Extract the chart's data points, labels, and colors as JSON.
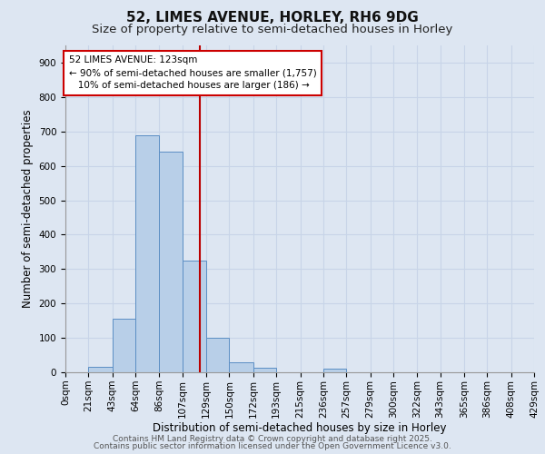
{
  "title": "52, LIMES AVENUE, HORLEY, RH6 9DG",
  "subtitle": "Size of property relative to semi-detached houses in Horley",
  "xlabel": "Distribution of semi-detached houses by size in Horley",
  "ylabel": "Number of semi-detached properties",
  "bin_edges": [
    0,
    21,
    43,
    64,
    86,
    107,
    129,
    150,
    172,
    193,
    215,
    236,
    257,
    279,
    300,
    322,
    343,
    365,
    386,
    408,
    429
  ],
  "bar_heights": [
    0,
    15,
    155,
    690,
    640,
    325,
    100,
    30,
    12,
    0,
    0,
    10,
    0,
    0,
    0,
    0,
    0,
    0,
    0,
    0
  ],
  "bar_color": "#b8cfe8",
  "bar_edge_color": "#5b8ec4",
  "grid_color": "#c8d4e8",
  "background_color": "#dde6f2",
  "vline_x": 123,
  "vline_color": "#bb0000",
  "annotation_text": "52 LIMES AVENUE: 123sqm\n← 90% of semi-detached houses are smaller (1,757)\n   10% of semi-detached houses are larger (186) →",
  "annotation_box_facecolor": "#ffffff",
  "annotation_box_edgecolor": "#cc0000",
  "ylim": [
    0,
    950
  ],
  "yticks": [
    0,
    100,
    200,
    300,
    400,
    500,
    600,
    700,
    800,
    900
  ],
  "footer_line1": "Contains HM Land Registry data © Crown copyright and database right 2025.",
  "footer_line2": "Contains public sector information licensed under the Open Government Licence v3.0.",
  "title_fontsize": 11,
  "subtitle_fontsize": 9.5,
  "axis_label_fontsize": 8.5,
  "tick_fontsize": 7.5,
  "annotation_fontsize": 7.5,
  "footer_fontsize": 6.5
}
